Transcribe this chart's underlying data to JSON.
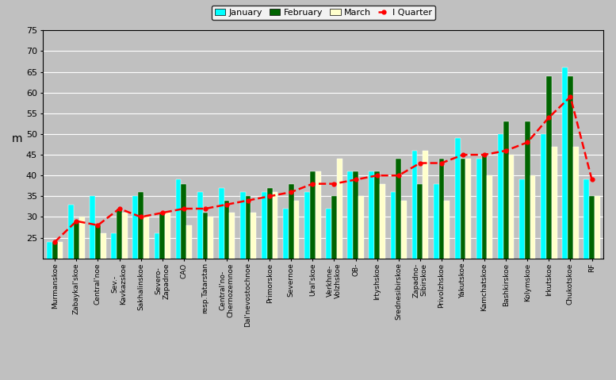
{
  "categories": [
    "Murmanskoe",
    "Zabaykal'skoe",
    "Central'noe",
    "Sev.-\nKavkazskoe",
    "Sakhalinskoe",
    "Severo-\nZapadnoe",
    "CAO",
    "resp.Tatarstan",
    "Central'no-\nChernozemnoe",
    "Dal'nevostochnoe",
    "Primorskoe",
    "Severnoe",
    "Ural'skoe",
    "Verkhne-\nVolzhskoe",
    "OB-",
    "Irtyshskoe",
    "Srednesibirskoe",
    "Zapadno-\nSibirskoe",
    "Privolzhskoe",
    "Yakutskoe",
    "Kamchatskoe",
    "Bashkirskoe",
    "Kolymskoe",
    "Irkutskoe",
    "Chukotskoe",
    "RF"
  ],
  "january": [
    24,
    33,
    35,
    26,
    35,
    26,
    39,
    36,
    37,
    36,
    36,
    32,
    36,
    32,
    41,
    41,
    36,
    46,
    38,
    49,
    44,
    50,
    39,
    50,
    66,
    39
  ],
  "february": [
    24,
    29,
    28,
    32,
    36,
    31,
    38,
    31,
    34,
    35,
    37,
    38,
    41,
    35,
    41,
    41,
    44,
    38,
    44,
    44,
    45,
    53,
    53,
    64,
    64,
    35
  ],
  "march": [
    24,
    30,
    26,
    31,
    30,
    31,
    28,
    30,
    31,
    31,
    36,
    34,
    41,
    44,
    35,
    38,
    34,
    46,
    34,
    44,
    40,
    45,
    40,
    47,
    47,
    35
  ],
  "quarter": [
    24,
    29,
    28,
    32,
    30,
    31,
    32,
    32,
    33,
    34,
    35,
    36,
    38,
    38,
    39,
    40,
    40,
    43,
    43,
    45,
    45,
    46,
    48,
    54,
    59,
    39
  ],
  "bar_color_jan": "#00FFFF",
  "bar_color_feb": "#006400",
  "bar_color_mar": "#FFFFCC",
  "quarter_color": "#FF0000",
  "background_color": "#C0C0C0",
  "plot_bg_color": "#C0C0C0",
  "grid_color": "#FFFFFF",
  "ylabel": "m",
  "ylim_min": 20,
  "ylim_max": 75,
  "yticks": [
    25,
    30,
    35,
    40,
    45,
    50,
    55,
    60,
    65,
    70,
    75
  ],
  "bar_width": 0.25,
  "fig_width": 7.77,
  "fig_height": 4.79,
  "dpi": 100
}
